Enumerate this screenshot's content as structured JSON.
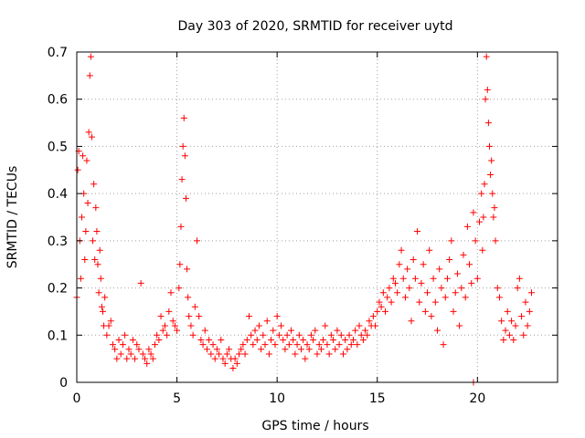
{
  "chart_data": {
    "type": "scatter",
    "title": "Day 303 of 2020, SRMTID for receiver uytd",
    "xlabel": "GPS time / hours",
    "ylabel": "SRMTID / TECUs",
    "xlim": [
      0,
      24
    ],
    "ylim": [
      0,
      0.7
    ],
    "xticks": [
      0,
      5,
      10,
      15,
      20
    ],
    "xtick_labels": [
      "0",
      "5",
      "10",
      "15",
      "20"
    ],
    "yticks": [
      0,
      0.1,
      0.2,
      0.3,
      0.4,
      0.5,
      0.6,
      0.7
    ],
    "ytick_labels": [
      "0",
      "0.1",
      "0.2",
      "0.3",
      "0.4",
      "0.5",
      "0.6",
      "0.7"
    ],
    "grid": true,
    "marker": "+",
    "series_color": "#ff0000",
    "series": [
      {
        "name": "SRMTID",
        "x": [
          0.0,
          0.05,
          0.1,
          0.15,
          0.2,
          0.25,
          0.3,
          0.35,
          0.4,
          0.45,
          0.5,
          0.55,
          0.6,
          0.65,
          0.7,
          0.75,
          0.8,
          0.85,
          0.9,
          0.95,
          1.0,
          1.05,
          1.1,
          1.15,
          1.2,
          1.25,
          1.3,
          1.35,
          1.4,
          1.5,
          1.6,
          1.7,
          1.8,
          1.9,
          2.0,
          2.1,
          2.2,
          2.3,
          2.4,
          2.5,
          2.6,
          2.7,
          2.8,
          2.9,
          3.0,
          3.1,
          3.2,
          3.3,
          3.4,
          3.5,
          3.6,
          3.7,
          3.8,
          3.9,
          4.0,
          4.1,
          4.2,
          4.3,
          4.4,
          4.5,
          4.6,
          4.7,
          4.8,
          4.9,
          5.0,
          5.1,
          5.15,
          5.2,
          5.25,
          5.3,
          5.35,
          5.4,
          5.45,
          5.5,
          5.55,
          5.6,
          5.7,
          5.8,
          5.9,
          6.0,
          6.1,
          6.2,
          6.3,
          6.4,
          6.5,
          6.6,
          6.7,
          6.8,
          6.9,
          7.0,
          7.1,
          7.2,
          7.3,
          7.4,
          7.5,
          7.6,
          7.7,
          7.8,
          7.9,
          8.0,
          8.1,
          8.2,
          8.3,
          8.4,
          8.5,
          8.6,
          8.7,
          8.8,
          8.9,
          9.0,
          9.1,
          9.2,
          9.3,
          9.4,
          9.5,
          9.6,
          9.7,
          9.8,
          9.9,
          10.0,
          10.1,
          10.2,
          10.3,
          10.4,
          10.5,
          10.6,
          10.7,
          10.8,
          10.9,
          11.0,
          11.1,
          11.2,
          11.3,
          11.4,
          11.5,
          11.6,
          11.7,
          11.8,
          11.9,
          12.0,
          12.1,
          12.2,
          12.3,
          12.4,
          12.5,
          12.6,
          12.7,
          12.8,
          12.9,
          13.0,
          13.1,
          13.2,
          13.3,
          13.4,
          13.5,
          13.6,
          13.7,
          13.8,
          13.9,
          14.0,
          14.1,
          14.2,
          14.3,
          14.4,
          14.5,
          14.6,
          14.7,
          14.8,
          14.9,
          15.0,
          15.1,
          15.2,
          15.3,
          15.4,
          15.5,
          15.6,
          15.7,
          15.8,
          15.9,
          16.0,
          16.1,
          16.2,
          16.3,
          16.4,
          16.5,
          16.6,
          16.7,
          16.8,
          16.9,
          17.0,
          17.1,
          17.2,
          17.3,
          17.4,
          17.5,
          17.6,
          17.7,
          17.8,
          17.9,
          18.0,
          18.1,
          18.2,
          18.3,
          18.4,
          18.5,
          18.6,
          18.7,
          18.8,
          18.9,
          19.0,
          19.1,
          19.2,
          19.3,
          19.4,
          19.5,
          19.6,
          19.7,
          19.8,
          19.9,
          20.0,
          20.1,
          20.2,
          20.25,
          20.3,
          20.35,
          20.4,
          20.45,
          20.5,
          20.55,
          20.6,
          20.65,
          20.7,
          20.75,
          20.8,
          20.85,
          20.9,
          21.0,
          21.1,
          21.2,
          21.3,
          21.4,
          21.5,
          21.6,
          21.7,
          21.8,
          21.9,
          22.0,
          22.1,
          22.2,
          22.3,
          22.4,
          22.5,
          22.6,
          22.7
        ],
        "y": [
          0.18,
          0.45,
          0.49,
          0.3,
          0.22,
          0.35,
          0.48,
          0.4,
          0.26,
          0.32,
          0.47,
          0.38,
          0.53,
          0.65,
          0.69,
          0.52,
          0.3,
          0.42,
          0.26,
          0.37,
          0.32,
          0.25,
          0.19,
          0.28,
          0.22,
          0.16,
          0.15,
          0.12,
          0.18,
          0.1,
          0.12,
          0.13,
          0.08,
          0.07,
          0.05,
          0.09,
          0.06,
          0.08,
          0.1,
          0.05,
          0.07,
          0.06,
          0.09,
          0.05,
          0.08,
          0.07,
          0.21,
          0.06,
          0.05,
          0.04,
          0.07,
          0.06,
          0.05,
          0.08,
          0.1,
          0.09,
          0.14,
          0.11,
          0.12,
          0.1,
          0.15,
          0.19,
          0.13,
          0.12,
          0.11,
          0.2,
          0.25,
          0.33,
          0.43,
          0.5,
          0.56,
          0.48,
          0.39,
          0.24,
          0.18,
          0.14,
          0.12,
          0.1,
          0.16,
          0.3,
          0.14,
          0.09,
          0.08,
          0.11,
          0.07,
          0.09,
          0.06,
          0.08,
          0.05,
          0.07,
          0.06,
          0.09,
          0.05,
          0.04,
          0.06,
          0.07,
          0.05,
          0.03,
          0.05,
          0.04,
          0.06,
          0.07,
          0.08,
          0.06,
          0.09,
          0.14,
          0.1,
          0.08,
          0.11,
          0.09,
          0.12,
          0.07,
          0.1,
          0.08,
          0.13,
          0.06,
          0.09,
          0.11,
          0.08,
          0.14,
          0.1,
          0.12,
          0.09,
          0.07,
          0.1,
          0.08,
          0.11,
          0.09,
          0.06,
          0.08,
          0.1,
          0.07,
          0.09,
          0.05,
          0.08,
          0.07,
          0.1,
          0.09,
          0.11,
          0.06,
          0.08,
          0.07,
          0.09,
          0.12,
          0.08,
          0.06,
          0.1,
          0.09,
          0.07,
          0.11,
          0.08,
          0.1,
          0.06,
          0.09,
          0.07,
          0.1,
          0.08,
          0.09,
          0.11,
          0.08,
          0.12,
          0.1,
          0.09,
          0.11,
          0.1,
          0.13,
          0.12,
          0.14,
          0.12,
          0.15,
          0.17,
          0.16,
          0.19,
          0.15,
          0.18,
          0.2,
          0.17,
          0.22,
          0.21,
          0.19,
          0.25,
          0.28,
          0.22,
          0.18,
          0.24,
          0.2,
          0.13,
          0.26,
          0.22,
          0.32,
          0.17,
          0.21,
          0.25,
          0.15,
          0.19,
          0.28,
          0.14,
          0.22,
          0.17,
          0.11,
          0.24,
          0.2,
          0.08,
          0.18,
          0.22,
          0.26,
          0.3,
          0.15,
          0.19,
          0.23,
          0.12,
          0.2,
          0.27,
          0.18,
          0.33,
          0.25,
          0.21,
          0.36,
          0.3,
          0.22,
          0.34,
          0.4,
          0.28,
          0.35,
          0.42,
          0.6,
          0.69,
          0.62,
          0.55,
          0.5,
          0.44,
          0.47,
          0.4,
          0.35,
          0.37,
          0.3,
          0.2,
          0.18,
          0.13,
          0.09,
          0.11,
          0.15,
          0.1,
          0.13,
          0.09,
          0.12,
          0.2,
          0.22,
          0.14,
          0.1,
          0.17,
          0.12,
          0.15,
          0.19
        ]
      }
    ],
    "extra_points": [
      {
        "x": 19.8,
        "y": 0.0
      }
    ]
  }
}
